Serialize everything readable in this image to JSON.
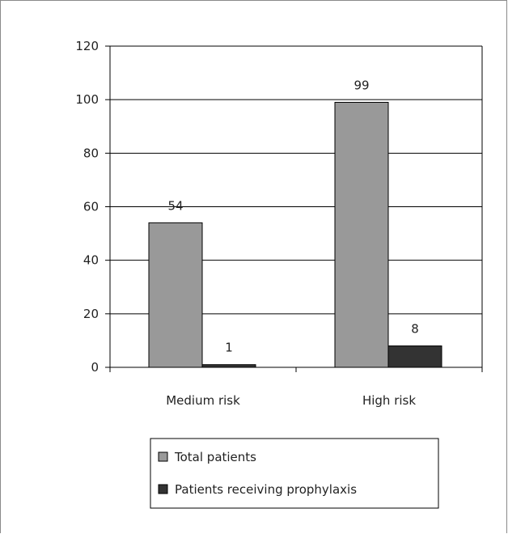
{
  "chart_data": {
    "type": "bar",
    "categories": [
      "Medium risk",
      "High risk"
    ],
    "series": [
      {
        "name": "Total patients",
        "values": [
          54,
          99
        ],
        "color": "#999999"
      },
      {
        "name": "Patients receiving prophylaxis",
        "values": [
          1,
          8
        ],
        "color": "#333333"
      }
    ],
    "ylim": [
      0,
      120
    ],
    "yticks": [
      0,
      20,
      40,
      60,
      80,
      100,
      120
    ],
    "grid": true,
    "legend_position": "bottom"
  }
}
